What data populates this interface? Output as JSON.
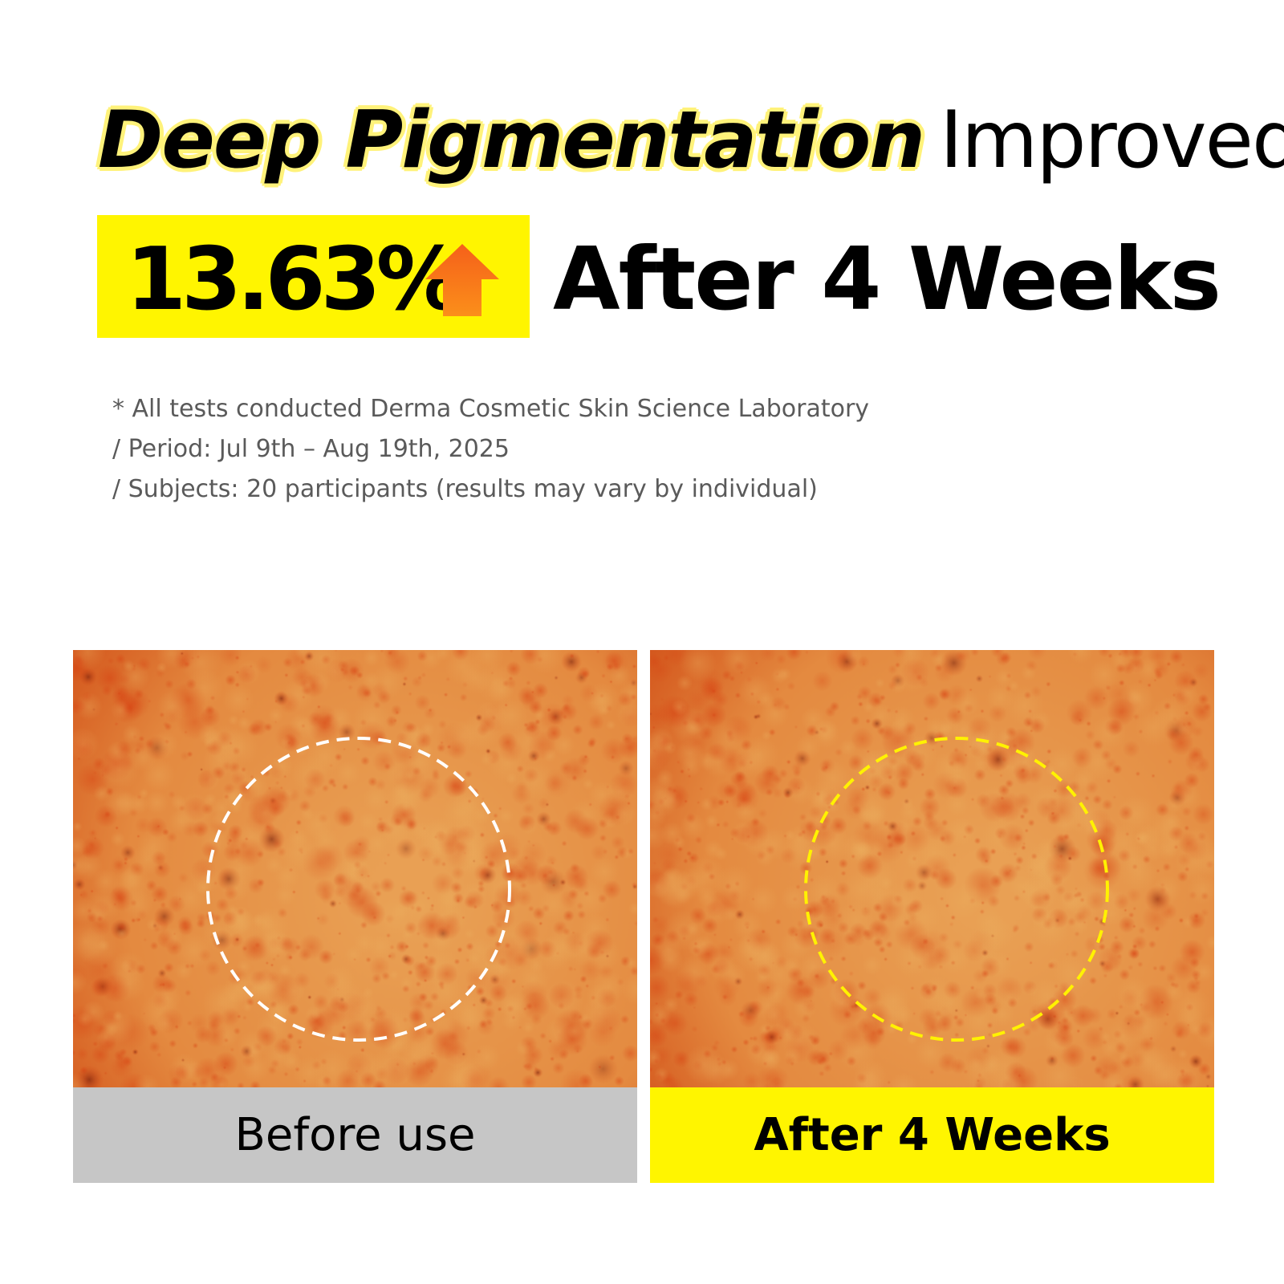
{
  "headline": {
    "highlight": "Deep Pigmentation",
    "rest": "Improved"
  },
  "stat": {
    "value": "13.63%",
    "icon": "arrow-up-icon",
    "period": "After 4 Weeks"
  },
  "notes": [
    "* All tests conducted Derma Cosmetic Skin Science Laboratory",
    "/ Period: Jul 9th – Aug 19th, 2025",
    "/ Subjects: 20 participants (results may vary by individual)"
  ],
  "panels": [
    {
      "label": "Before use",
      "circle_color": "#ffffff"
    },
    {
      "label": "After 4 Weeks",
      "circle_color": "#fff200"
    }
  ],
  "colors": {
    "accent_yellow": "#fff500",
    "arrow_orange": "#f77a1a",
    "before_gray": "#c6c6c6"
  }
}
